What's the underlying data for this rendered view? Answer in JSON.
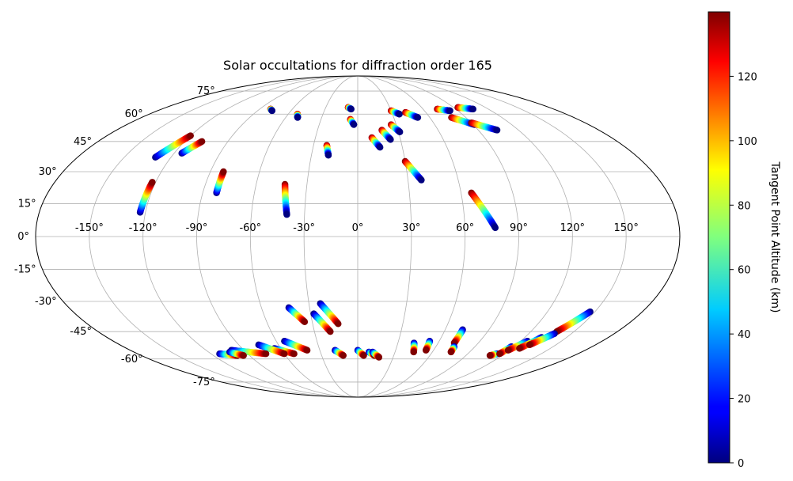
{
  "chart_data": {
    "type": "scatter",
    "projection": "mollweide",
    "title": "Solar occultations for diffraction order 165",
    "grid": true,
    "lon_ticks": [
      -150,
      -120,
      -90,
      -60,
      -30,
      0,
      30,
      60,
      90,
      120,
      150
    ],
    "lat_ticks": [
      -75,
      -60,
      -45,
      -30,
      -15,
      0,
      15,
      30,
      45,
      60,
      75
    ],
    "lon_tick_labels": [
      "-150°",
      "-120°",
      "-90°",
      "-60°",
      "-30°",
      "0°",
      "30°",
      "60°",
      "90°",
      "120°",
      "150°"
    ],
    "lat_tick_labels": [
      "-75°",
      "-60°",
      "-45°",
      "-30°",
      "-15°",
      "0°",
      "15°",
      "30°",
      "45°",
      "60°",
      "75°"
    ],
    "colorbar": {
      "label": "Tangent Point Altitude (km)",
      "colormap": "jet",
      "range": [
        0,
        140
      ],
      "ticks": [
        0,
        20,
        40,
        60,
        80,
        100,
        120
      ],
      "tick_labels": [
        "0",
        "20",
        "40",
        "60",
        "80",
        "100",
        "120"
      ]
    },
    "tracks": [
      {
        "start": [
          -130,
          37
        ],
        "end": [
          -120,
          48
        ],
        "alt_start": 0,
        "alt_end": 140
      },
      {
        "start": [
          -115,
          39
        ],
        "end": [
          -108,
          45
        ],
        "alt_start": 0,
        "alt_end": 140
      },
      {
        "start": [
          -123,
          11
        ],
        "end": [
          -122,
          25
        ],
        "alt_start": 0,
        "alt_end": 140
      },
      {
        "start": [
          -82,
          20
        ],
        "end": [
          -82,
          30
        ],
        "alt_start": 0,
        "alt_end": 140
      },
      {
        "start": [
          -80,
          63
        ],
        "end": [
          -77,
          62
        ],
        "alt_start": 140,
        "alt_end": 0
      },
      {
        "start": [
          -52,
          60
        ],
        "end": [
          -50,
          58
        ],
        "alt_start": 140,
        "alt_end": 0
      },
      {
        "start": [
          -43,
          24
        ],
        "end": [
          -40,
          10
        ],
        "alt_start": 140,
        "alt_end": 0
      },
      {
        "start": [
          -21,
          43
        ],
        "end": [
          -19,
          38
        ],
        "alt_start": 140,
        "alt_end": 0
      },
      {
        "start": [
          -9,
          64
        ],
        "end": [
          -6,
          63
        ],
        "alt_start": 140,
        "alt_end": 0
      },
      {
        "start": [
          -6,
          57
        ],
        "end": [
          -3,
          54
        ],
        "alt_start": 140,
        "alt_end": 0
      },
      {
        "start": [
          10,
          47
        ],
        "end": [
          15,
          42
        ],
        "alt_start": 140,
        "alt_end": 0
      },
      {
        "start": [
          18,
          51
        ],
        "end": [
          23,
          46
        ],
        "alt_start": 140,
        "alt_end": 0
      },
      {
        "start": [
          26,
          54
        ],
        "end": [
          31,
          50
        ],
        "alt_start": 140,
        "alt_end": 0
      },
      {
        "start": [
          30,
          35
        ],
        "end": [
          38,
          26
        ],
        "alt_start": 140,
        "alt_end": 0
      },
      {
        "start": [
          30,
          62
        ],
        "end": [
          36,
          60
        ],
        "alt_start": 140,
        "alt_end": 0
      },
      {
        "start": [
          42,
          61
        ],
        "end": [
          50,
          58
        ],
        "alt_start": 140,
        "alt_end": 0
      },
      {
        "start": [
          66,
          20
        ],
        "end": [
          77,
          4
        ],
        "alt_start": 140,
        "alt_end": 0
      },
      {
        "start": [
          73,
          63
        ],
        "end": [
          83,
          62
        ],
        "alt_start": 140,
        "alt_end": 0
      },
      {
        "start": [
          78,
          58
        ],
        "end": [
          91,
          54
        ],
        "alt_start": 140,
        "alt_end": 0
      },
      {
        "start": [
          90,
          55
        ],
        "end": [
          104,
          51
        ],
        "alt_start": 140,
        "alt_end": 0
      },
      {
        "start": [
          94,
          64
        ],
        "end": [
          106,
          63
        ],
        "alt_start": 140,
        "alt_end": 0
      },
      {
        "start": [
          -43,
          -33
        ],
        "end": [
          -35,
          -40
        ],
        "alt_start": 0,
        "alt_end": 140
      },
      {
        "start": [
          -28,
          -36
        ],
        "end": [
          -19,
          -45
        ],
        "alt_start": 0,
        "alt_end": 140
      },
      {
        "start": [
          -23,
          -31
        ],
        "end": [
          -13,
          -41
        ],
        "alt_start": 0,
        "alt_end": 140
      },
      {
        "start": [
          -18,
          -55
        ],
        "end": [
          -12,
          -58
        ],
        "alt_start": 0,
        "alt_end": 140
      },
      {
        "start": [
          0,
          -55
        ],
        "end": [
          5,
          -58
        ],
        "alt_start": 0,
        "alt_end": 140
      },
      {
        "start": [
          9,
          -56
        ],
        "end": [
          14,
          -58
        ],
        "alt_start": 0,
        "alt_end": 140
      },
      {
        "start": [
          12,
          -56
        ],
        "end": [
          18,
          -59
        ],
        "alt_start": 0,
        "alt_end": 140
      },
      {
        "start": [
          -54,
          -50
        ],
        "end": [
          -40,
          -55
        ],
        "alt_start": 0,
        "alt_end": 140
      },
      {
        "start": [
          -65,
          -54
        ],
        "end": [
          -52,
          -57
        ],
        "alt_start": 0,
        "alt_end": 140
      },
      {
        "start": [
          -75,
          -52
        ],
        "end": [
          -60,
          -57
        ],
        "alt_start": 0,
        "alt_end": 140
      },
      {
        "start": [
          -100,
          -55
        ],
        "end": [
          -75,
          -57
        ],
        "alt_start": 0,
        "alt_end": 140
      },
      {
        "start": [
          -113,
          -57
        ],
        "end": [
          -100,
          -58
        ],
        "alt_start": 0,
        "alt_end": 140
      },
      {
        "start": [
          -103,
          -56
        ],
        "end": [
          -95,
          -58
        ],
        "alt_start": 0,
        "alt_end": 140
      },
      {
        "start": [
          42,
          -51
        ],
        "end": [
          45,
          -56
        ],
        "alt_start": 0,
        "alt_end": 140
      },
      {
        "start": [
          53,
          -50
        ],
        "end": [
          54,
          -55
        ],
        "alt_start": 0,
        "alt_end": 140
      },
      {
        "start": [
          72,
          -44
        ],
        "end": [
          72,
          -51
        ],
        "alt_start": 0,
        "alt_end": 140
      },
      {
        "start": [
          74,
          -53
        ],
        "end": [
          75,
          -56
        ],
        "alt_start": 0,
        "alt_end": 140
      },
      {
        "start": [
          114,
          -57
        ],
        "end": [
          110,
          -58
        ],
        "alt_start": 0,
        "alt_end": 140
      },
      {
        "start": [
          118,
          -53
        ],
        "end": [
          116,
          -57
        ],
        "alt_start": 0,
        "alt_end": 140
      },
      {
        "start": [
          125,
          -50
        ],
        "end": [
          119,
          -55
        ],
        "alt_start": 0,
        "alt_end": 140
      },
      {
        "start": [
          132,
          -48
        ],
        "end": [
          126,
          -54
        ],
        "alt_start": 0,
        "alt_end": 140
      },
      {
        "start": [
          147,
          -35
        ],
        "end": [
          138,
          -45
        ],
        "alt_start": 0,
        "alt_end": 140
      },
      {
        "start": [
          138,
          -46
        ],
        "end": [
          130,
          -52
        ],
        "alt_start": 0,
        "alt_end": 140
      }
    ]
  }
}
